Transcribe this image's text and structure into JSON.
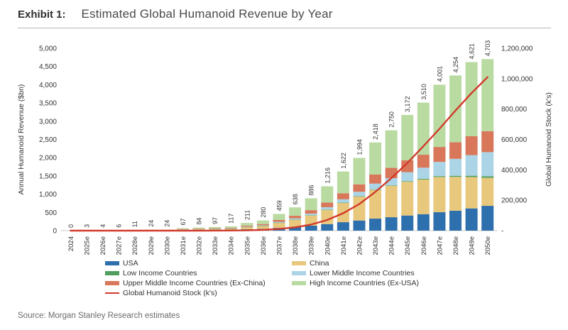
{
  "title": {
    "exhibit_label": "Exhibit 1:",
    "text": "Estimated Global Humanoid Revenue by Year"
  },
  "source": "Source: Morgan Stanley Research estimates",
  "chart_data": {
    "type": "bar",
    "subtype": "stacked-bars-with-line-overlay",
    "grid": "off",
    "background": "#ffffff",
    "categories": [
      "2024",
      "2025e",
      "2026e",
      "2027e",
      "2028e",
      "2029e",
      "2030e",
      "2031e",
      "2032e",
      "2033e",
      "2034e",
      "2035e",
      "2036e",
      "2037e",
      "2038e",
      "2039e",
      "2040e",
      "2041e",
      "2042e",
      "2043e",
      "2044e",
      "2045e",
      "2046e",
      "2047e",
      "2048e",
      "2049e",
      "2050e"
    ],
    "bar_total_labels": [
      "0",
      "3",
      "4",
      "6",
      "11",
      "24",
      "24",
      "67",
      "84",
      "97",
      "117",
      "211",
      "280",
      "459",
      "638",
      "886",
      "1,216",
      "1,622",
      "1,994",
      "2,418",
      "2,750",
      "3,172",
      "3,510",
      "4,001",
      "4,254",
      "4,621",
      "4,703"
    ],
    "bar_totals": [
      0,
      3,
      4,
      6,
      11,
      24,
      24,
      67,
      84,
      97,
      117,
      211,
      280,
      459,
      638,
      886,
      1216,
      1622,
      1994,
      2418,
      2750,
      3172,
      3510,
      4001,
      4254,
      4621,
      4703
    ],
    "series": [
      {
        "name": "USA",
        "color": "#2e6fad",
        "values": [
          0,
          1,
          1,
          2,
          3,
          6,
          6,
          14,
          17,
          19,
          22,
          38,
          48,
          76,
          102,
          136,
          180,
          232,
          278,
          330,
          368,
          415,
          452,
          505,
          545,
          610,
          680
        ]
      },
      {
        "name": "China",
        "color": "#e8c87d",
        "values": [
          0,
          1,
          1,
          2,
          3,
          7,
          7,
          20,
          25,
          29,
          35,
          64,
          86,
          142,
          200,
          282,
          392,
          528,
          656,
          790,
          862,
          925,
          950,
          965,
          930,
          860,
          770
        ]
      },
      {
        "name": "Low Income Countries",
        "color": "#4f9e5e",
        "values": [
          0,
          0,
          0,
          0,
          0,
          0,
          0,
          0,
          0,
          1,
          1,
          1,
          1,
          2,
          3,
          4,
          5,
          7,
          9,
          11,
          13,
          16,
          19,
          24,
          28,
          35,
          42
        ]
      },
      {
        "name": "Lower Middle Income Countries",
        "color": "#abd4e6",
        "values": [
          0,
          0,
          0,
          0,
          0,
          1,
          1,
          3,
          4,
          5,
          6,
          10,
          14,
          22,
          32,
          46,
          66,
          92,
          122,
          158,
          196,
          248,
          305,
          390,
          465,
          565,
          660
        ]
      },
      {
        "name": "Upper Middle Income Countries (Ex-China)",
        "color": "#d8775a",
        "values": [
          0,
          0,
          1,
          1,
          2,
          3,
          3,
          9,
          11,
          13,
          15,
          26,
          33,
          52,
          70,
          94,
          126,
          166,
          204,
          248,
          282,
          322,
          355,
          410,
          455,
          520,
          575
        ]
      },
      {
        "name": "High Income Countries (Ex-USA)",
        "color": "#b9dba2",
        "values": [
          0,
          1,
          1,
          1,
          3,
          7,
          7,
          21,
          27,
          30,
          38,
          72,
          98,
          165,
          231,
          324,
          447,
          597,
          725,
          881,
          1029,
          1246,
          1429,
          1707,
          1831,
          2031,
          1976
        ]
      }
    ],
    "line_series": {
      "name": "Global Humanoid Stock (k's)",
      "color": "#d23a2c",
      "axis": "right",
      "values": [
        0,
        1,
        2,
        5,
        10,
        20,
        40,
        90,
        200,
        400,
        900,
        2000,
        5000,
        11000,
        22000,
        40000,
        70000,
        115000,
        175000,
        255000,
        345000,
        445000,
        555000,
        670000,
        790000,
        905000,
        1010000
      ]
    },
    "left_axis": {
      "label": "Annual Humanoid Revenue ($bn)",
      "min": 0,
      "max": 5000,
      "step": 500,
      "tick_labels": [
        "0",
        "500",
        "1,000",
        "1,500",
        "2,000",
        "2,500",
        "3,000",
        "3,500",
        "4,000",
        "4,500",
        "5,000"
      ]
    },
    "right_axis": {
      "label": "Global Humanoid Stock (k's)",
      "min": 0,
      "max": 1200000,
      "step": 200000,
      "zero_tick_label": "-",
      "tick_labels": [
        "-",
        "200,000",
        "400,000",
        "600,000",
        "800,000",
        "1,000,000",
        "1,200,000"
      ]
    },
    "legend": {
      "position": "bottom",
      "columns": [
        [
          {
            "label": "USA",
            "color": "#2e6fad",
            "swatch": "bar"
          },
          {
            "label": "Low Income Countries",
            "color": "#4f9e5e",
            "swatch": "bar"
          },
          {
            "label": "Upper Middle Income Countries (Ex-China)",
            "color": "#d8775a",
            "swatch": "bar"
          },
          {
            "label": "Global Humanoid Stock (k's)",
            "color": "#d23a2c",
            "swatch": "line"
          }
        ],
        [
          {
            "label": "China",
            "color": "#e8c87d",
            "swatch": "bar"
          },
          {
            "label": "Lower Middle Income Countries",
            "color": "#abd4e6",
            "swatch": "bar"
          },
          {
            "label": "High Income Countries (Ex-USA)",
            "color": "#b9dba2",
            "swatch": "bar"
          }
        ]
      ]
    }
  }
}
